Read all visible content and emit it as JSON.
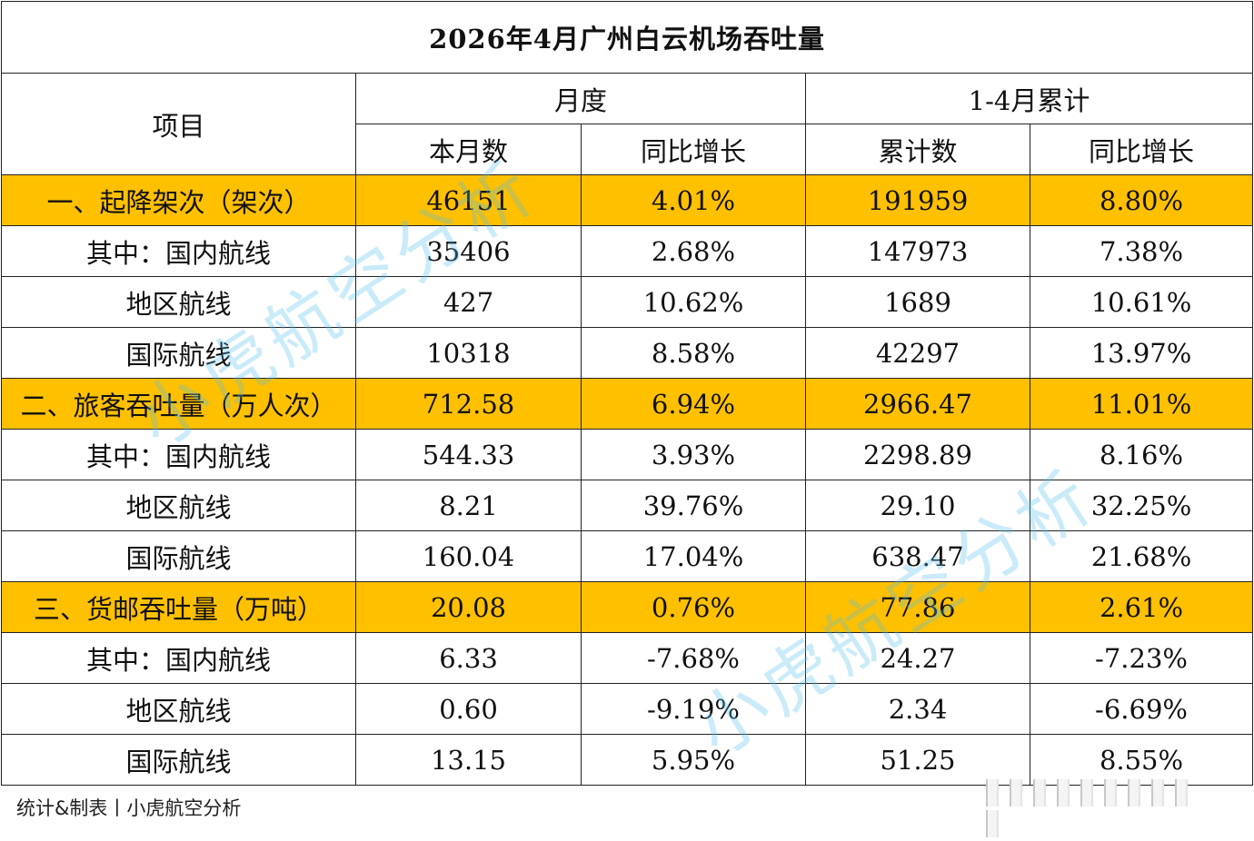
{
  "title": "2026年4月广州白云机场吞吐量",
  "header": {
    "item": "项目",
    "monthly": "月度",
    "cumulative": "1-4月累计",
    "month_count": "本月数",
    "month_yoy": "同比增长",
    "cum_count": "累计数",
    "cum_yoy": "同比增长"
  },
  "rows": [
    {
      "label": "一、起降架次（架次）",
      "highlight": true,
      "month": "46151",
      "month_yoy": "4.01%",
      "cum": "191959",
      "cum_yoy": "8.80%"
    },
    {
      "label": "其中：国内航线",
      "highlight": false,
      "month": "35406",
      "month_yoy": "2.68%",
      "cum": "147973",
      "cum_yoy": "7.38%"
    },
    {
      "label": "地区航线",
      "highlight": false,
      "month": "427",
      "month_yoy": "10.62%",
      "cum": "1689",
      "cum_yoy": "10.61%"
    },
    {
      "label": "国际航线",
      "highlight": false,
      "month": "10318",
      "month_yoy": "8.58%",
      "cum": "42297",
      "cum_yoy": "13.97%"
    },
    {
      "label": "二、旅客吞吐量（万人次）",
      "highlight": true,
      "month": "712.58",
      "month_yoy": "6.94%",
      "cum": "2966.47",
      "cum_yoy": "11.01%"
    },
    {
      "label": "其中：国内航线",
      "highlight": false,
      "month": "544.33",
      "month_yoy": "3.93%",
      "cum": "2298.89",
      "cum_yoy": "8.16%"
    },
    {
      "label": "地区航线",
      "highlight": false,
      "month": "8.21",
      "month_yoy": "39.76%",
      "cum": "29.10",
      "cum_yoy": "32.25%"
    },
    {
      "label": "国际航线",
      "highlight": false,
      "month": "160.04",
      "month_yoy": "17.04%",
      "cum": "638.47",
      "cum_yoy": "21.68%"
    },
    {
      "label": "三、货邮吞吐量（万吨）",
      "highlight": true,
      "month": "20.08",
      "month_yoy": "0.76%",
      "cum": "77.86",
      "cum_yoy": "2.61%"
    },
    {
      "label": "其中：国内航线",
      "highlight": false,
      "month": "6.33",
      "month_yoy": "-7.68%",
      "cum": "24.27",
      "cum_yoy": "-7.23%"
    },
    {
      "label": "地区航线",
      "highlight": false,
      "month": "0.60",
      "month_yoy": "-9.19%",
      "cum": "2.34",
      "cum_yoy": "-6.69%"
    },
    {
      "label": "国际航线",
      "highlight": false,
      "month": "13.15",
      "month_yoy": "5.95%",
      "cum": "51.25",
      "cum_yoy": "8.55%"
    }
  ],
  "footer": "统计&制表丨小虎航空分析",
  "watermark": "小虎航空分析",
  "colors": {
    "highlight": "#ffc000",
    "watermark": "#50bee8"
  }
}
